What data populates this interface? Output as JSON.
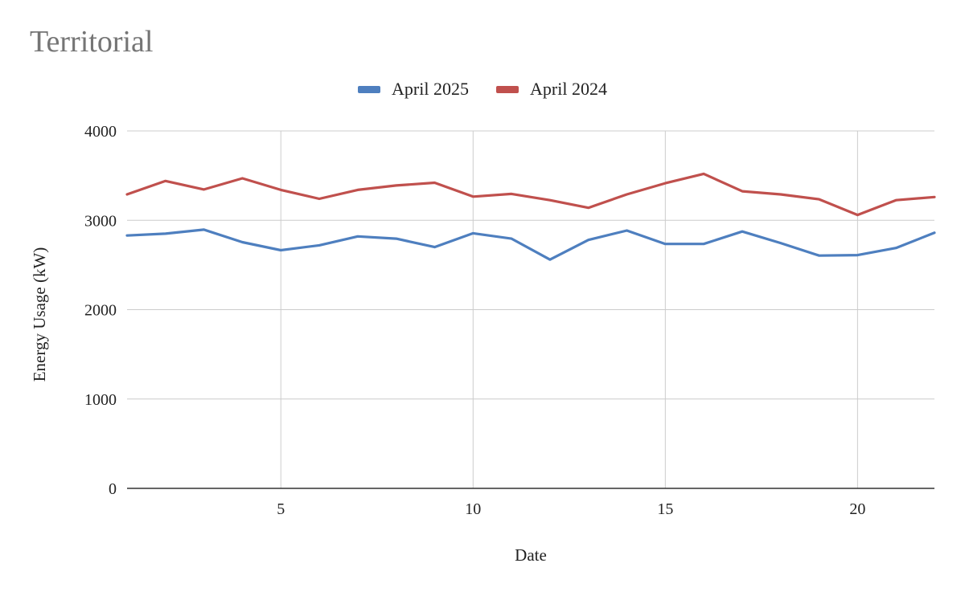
{
  "chart_data": {
    "type": "line",
    "title": "Territorial",
    "xlabel": "Date",
    "ylabel": "Energy Usage (kW)",
    "xlim": [
      1,
      22
    ],
    "ylim": [
      0,
      4000
    ],
    "x_ticks": [
      5,
      10,
      15,
      20
    ],
    "y_ticks": [
      0,
      1000,
      2000,
      3000,
      4000
    ],
    "grid": true,
    "legend_position": "top",
    "x": [
      1,
      2,
      3,
      4,
      5,
      6,
      7,
      8,
      9,
      10,
      11,
      12,
      13,
      14,
      15,
      16,
      17,
      18,
      19,
      20,
      21,
      22
    ],
    "series": [
      {
        "name": "April 2025",
        "color": "#4e7fbf",
        "values": [
          2830,
          2850,
          2895,
          2755,
          2665,
          2720,
          2820,
          2795,
          2700,
          2855,
          2795,
          2560,
          2780,
          2885,
          2735,
          2735,
          2875,
          2745,
          2605,
          2610,
          2690,
          2860
        ]
      },
      {
        "name": "April 2024",
        "color": "#c0504d",
        "values": [
          3290,
          3440,
          3345,
          3470,
          3340,
          3240,
          3340,
          3390,
          3420,
          3265,
          3295,
          3225,
          3140,
          3290,
          3415,
          3520,
          3325,
          3290,
          3235,
          3060,
          3225,
          3260
        ]
      }
    ]
  }
}
